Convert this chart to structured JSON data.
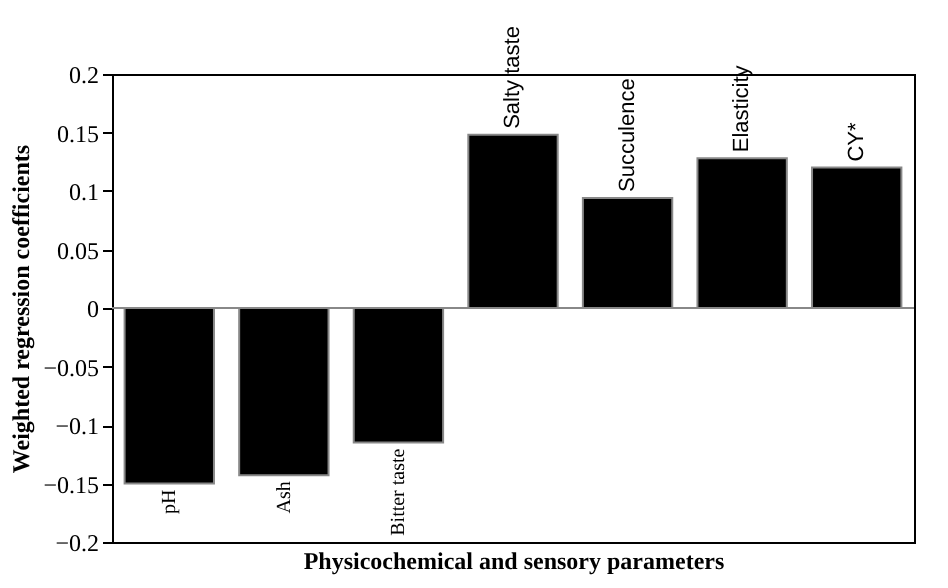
{
  "chart_data": {
    "type": "bar",
    "xlabel": "Physicochemical and sensory parameters",
    "ylabel": "Weighted regression coefficients",
    "categories": [
      "pH",
      "Ash",
      "Bitter taste",
      "Salty taste",
      "Succulence",
      "Elasticity",
      "CY*"
    ],
    "values": [
      -0.15,
      -0.143,
      -0.115,
      0.148,
      0.094,
      0.128,
      0.12
    ],
    "color": "#000000",
    "ylim": [
      -0.2,
      0.2
    ],
    "yticks": [
      -0.2,
      -0.15,
      -0.1,
      -0.05,
      0,
      0.05,
      0.1,
      0.15,
      0.2
    ],
    "ref_lines": [
      {
        "axis": "y",
        "value": 0,
        "color": "#888888"
      }
    ],
    "grid": false
  }
}
